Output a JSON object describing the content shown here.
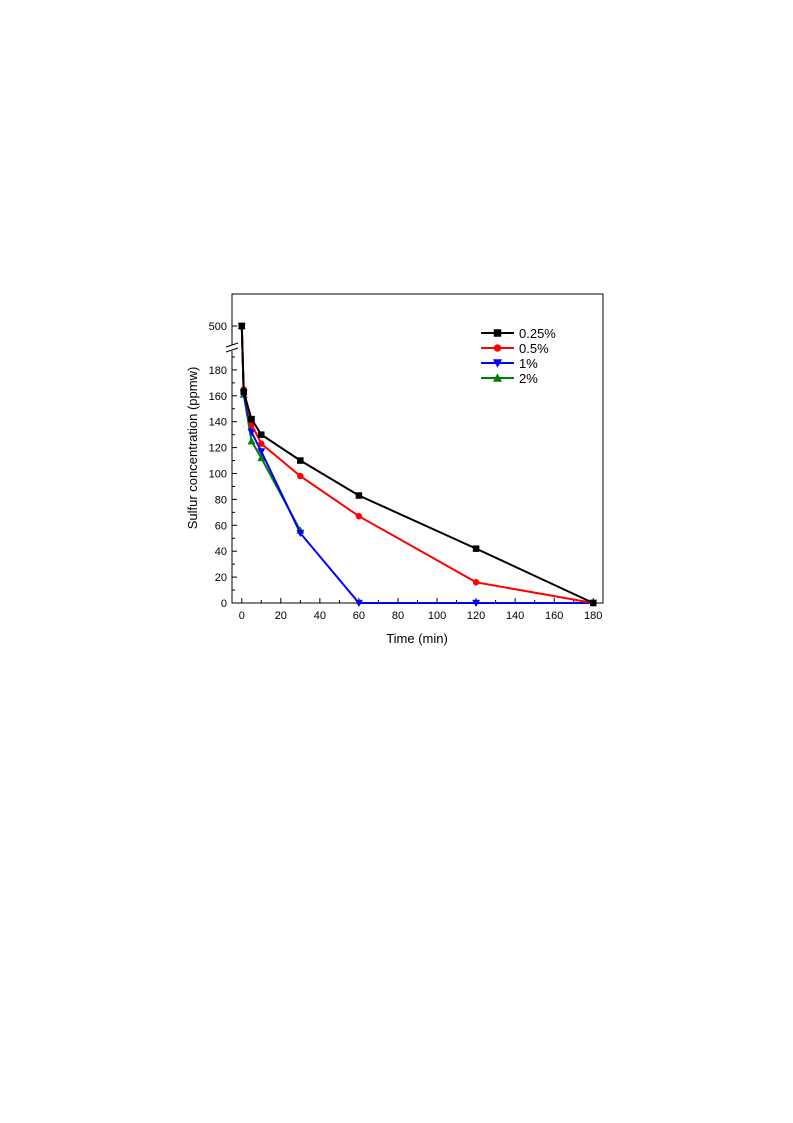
{
  "chart_data": {
    "type": "line",
    "title": "",
    "xlabel": "Time (min)",
    "ylabel": "Sulfur concentration (ppmw)",
    "xlim": [
      -5,
      185
    ],
    "ylim": [
      0,
      200
    ],
    "upper_ylim": [
      480,
      520
    ],
    "xticks": [
      0,
      20,
      40,
      60,
      80,
      100,
      120,
      140,
      160,
      180
    ],
    "yticks": [
      0,
      20,
      40,
      60,
      80,
      100,
      120,
      140,
      160,
      180
    ],
    "upper_yticks": [
      500
    ],
    "axis_break": true,
    "grid": false,
    "legend_position": "top-right",
    "series": [
      {
        "name": "0.25%",
        "color": "#000000",
        "marker": "square",
        "x": [
          0,
          1,
          5,
          10,
          30,
          60,
          120,
          180
        ],
        "y": [
          500,
          163,
          142,
          130,
          110,
          83,
          42,
          0
        ]
      },
      {
        "name": "0.5%",
        "color": "#ff0000",
        "marker": "circle",
        "x": [
          0,
          1,
          5,
          10,
          30,
          60,
          120,
          180
        ],
        "y": [
          500,
          165,
          138,
          123,
          98,
          67,
          16,
          0
        ]
      },
      {
        "name": "1%",
        "color": "#0000ff",
        "marker": "triangle-down",
        "x": [
          0,
          1,
          5,
          10,
          30,
          60,
          120,
          180
        ],
        "y": [
          500,
          162,
          132,
          117,
          54,
          0,
          0,
          0
        ]
      },
      {
        "name": "2%",
        "color": "#008000",
        "marker": "triangle-up",
        "x": [
          0,
          1,
          5,
          10,
          30
        ],
        "y": [
          500,
          161,
          125,
          112,
          56
        ]
      }
    ]
  }
}
